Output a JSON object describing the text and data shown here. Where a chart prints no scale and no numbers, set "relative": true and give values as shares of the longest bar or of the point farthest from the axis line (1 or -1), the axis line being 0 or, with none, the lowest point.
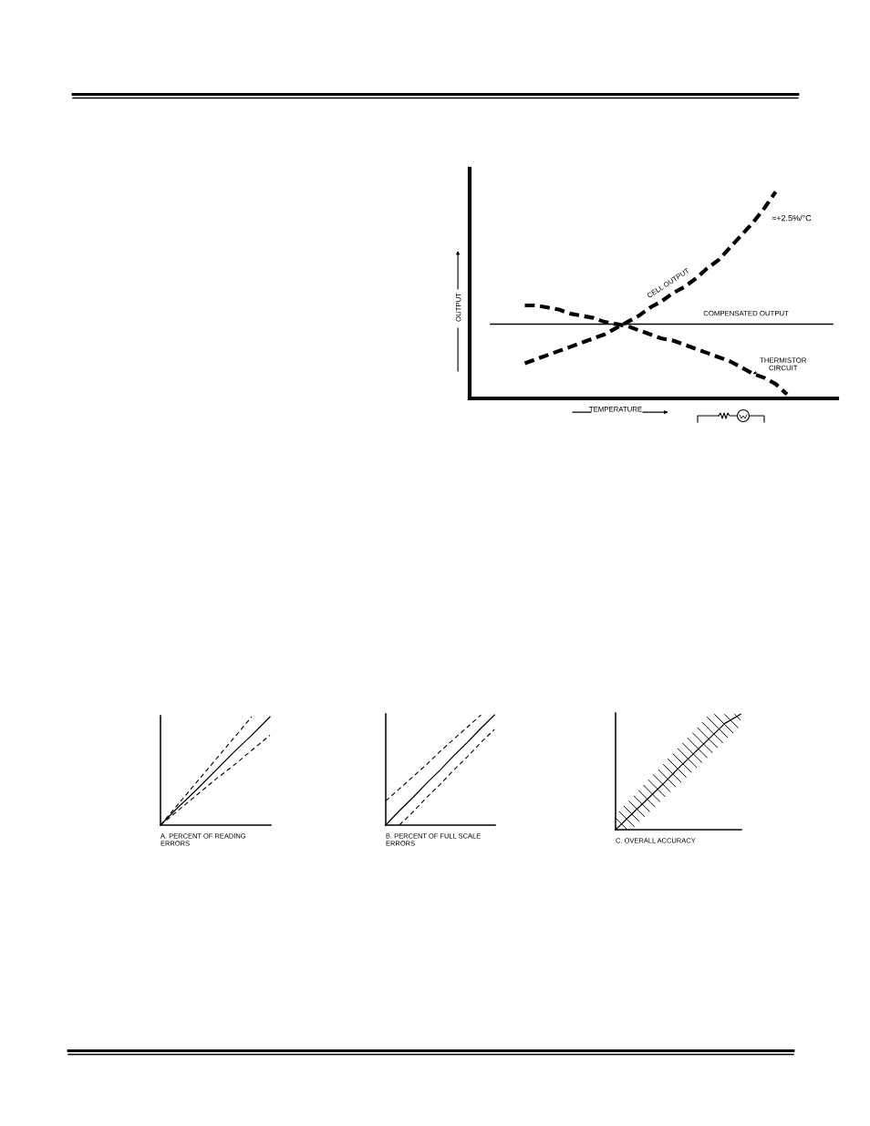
{
  "chart_data": [
    {
      "type": "line",
      "relative": true,
      "xlabel": "TEMPERATURE",
      "ylabel": "OUTPUT",
      "categories": [
        null,
        null,
        null,
        null,
        null,
        null,
        null,
        null,
        null,
        null,
        null,
        null,
        null,
        null,
        null,
        null,
        null,
        null,
        null,
        null,
        null,
        null,
        null,
        null,
        null,
        null,
        null,
        null,
        null,
        null,
        null
      ],
      "series": [
        {
          "name": "CELL OUTPUT",
          "color": "#000000",
          "line_style": "dashed",
          "values": [
            null,
            null,
            null,
            0.17,
            0.19,
            0.21,
            0.23,
            0.25,
            0.27,
            0.29,
            0.31,
            0.34,
            0.37,
            0.4,
            0.44,
            0.47,
            0.51,
            0.54,
            0.58,
            0.63,
            0.67,
            0.73,
            0.79,
            0.85,
            0.92,
            1.0,
            null,
            null,
            null,
            null,
            null
          ]
        },
        {
          "name": "COMPENSATED OUTPUT",
          "color": "#000000",
          "line_style": "solid",
          "values": [
            0.36,
            0.36,
            0.36,
            0.36,
            0.36,
            0.36,
            0.36,
            0.36,
            0.36,
            0.36,
            0.36,
            0.36,
            0.36,
            0.36,
            0.36,
            0.36,
            0.36,
            0.36,
            0.36,
            0.36,
            0.36,
            0.36,
            0.36,
            0.36,
            0.36,
            0.36,
            0.36,
            0.36,
            0.36,
            0.36,
            0.36
          ]
        },
        {
          "name": "THERMISTOR\nCIRCUIT",
          "color": "#000000",
          "line_style": "dashed",
          "values": [
            null,
            null,
            null,
            0.45,
            0.45,
            0.44,
            0.43,
            0.41,
            0.4,
            0.39,
            0.37,
            0.36,
            0.35,
            0.33,
            0.31,
            0.29,
            0.28,
            0.26,
            0.24,
            0.22,
            0.2,
            0.18,
            0.15,
            0.12,
            0.1,
            0.07,
            0.02,
            null,
            null,
            null,
            null
          ]
        }
      ],
      "annotations": [
        "≈+2.5%/°C"
      ]
    },
    {
      "type": "line",
      "relative": true,
      "xlabel": "A. PERCENT OF READING\nERRORS",
      "categories": [
        null,
        null,
        null,
        null,
        null,
        null,
        null
      ],
      "series": [
        {
          "color": "#000000",
          "line_style": "dashed",
          "values": [
            0,
            0.2,
            0.4,
            0.6,
            0.8,
            1.0,
            null
          ]
        },
        {
          "color": "#000000",
          "line_style": "solid",
          "values": [
            0,
            0.17,
            0.33,
            0.5,
            0.67,
            0.83,
            1.0
          ]
        },
        {
          "color": "#000000",
          "line_style": "dashed",
          "values": [
            0,
            0.14,
            0.28,
            0.42,
            0.55,
            0.69,
            0.83
          ]
        }
      ]
    },
    {
      "type": "line",
      "relative": true,
      "xlabel": "B. PERCENT OF FULL SCALE\nERRORS",
      "categories": [
        null,
        null,
        null,
        null,
        null,
        null,
        null,
        null,
        null
      ],
      "series": [
        {
          "color": "#000000",
          "line_style": "dashed",
          "values": [
            0.22,
            0.33,
            0.44,
            0.55,
            0.67,
            0.78,
            0.89,
            1.0,
            null
          ]
        },
        {
          "color": "#000000",
          "line_style": "solid",
          "values": [
            0,
            0.13,
            0.25,
            0.38,
            0.5,
            0.63,
            0.75,
            0.88,
            1.0
          ]
        },
        {
          "color": "#000000",
          "line_style": "dashed",
          "values": [
            null,
            0,
            0.12,
            0.25,
            0.37,
            0.5,
            0.62,
            0.75,
            0.87
          ]
        }
      ]
    },
    {
      "type": "line",
      "relative": true,
      "xlabel": "C. OVERALL ACCURACY",
      "categories": [
        null,
        null,
        null,
        null,
        null,
        null,
        null,
        null,
        null
      ],
      "series": [
        {
          "color": "#000000",
          "line_style": "solid",
          "values": [
            0,
            0.13,
            0.26,
            0.39,
            0.53,
            0.66,
            0.79,
            0.92,
            1.0
          ],
          "lower": [
            0,
            0,
            0.13,
            0.26,
            0.39,
            0.51,
            0.64,
            0.77,
            0.9
          ],
          "upper": [
            0.13,
            0.27,
            0.42,
            0.56,
            0.71,
            0.85,
            1.0,
            1.0,
            1.0
          ]
        }
      ]
    }
  ]
}
